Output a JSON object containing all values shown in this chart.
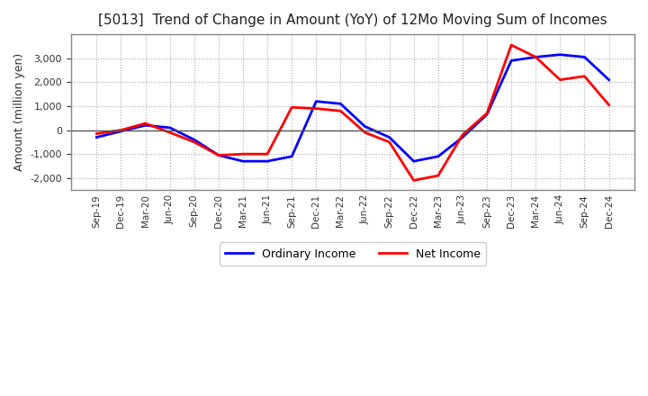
{
  "title": "[5013]  Trend of Change in Amount (YoY) of 12Mo Moving Sum of Incomes",
  "ylabel": "Amount (million yen)",
  "x_labels": [
    "Sep-19",
    "Dec-19",
    "Mar-20",
    "Jun-20",
    "Sep-20",
    "Dec-20",
    "Mar-21",
    "Jun-21",
    "Sep-21",
    "Dec-21",
    "Mar-22",
    "Jun-22",
    "Sep-22",
    "Dec-22",
    "Mar-23",
    "Jun-23",
    "Sep-23",
    "Dec-23",
    "Mar-24",
    "Jun-24",
    "Sep-24",
    "Dec-24"
  ],
  "ordinary_income": [
    -300,
    -50,
    200,
    100,
    -400,
    -1050,
    -1300,
    -1300,
    -1100,
    1200,
    1100,
    150,
    -300,
    -1300,
    -1100,
    -300,
    650,
    2900,
    3050,
    3150,
    3050,
    2100
  ],
  "net_income": [
    -150,
    0,
    280,
    -100,
    -500,
    -1050,
    -1000,
    -1000,
    950,
    900,
    800,
    -100,
    -500,
    -2100,
    -1900,
    -200,
    700,
    3550,
    3050,
    2100,
    2250,
    1050
  ],
  "ordinary_color": "#0000FF",
  "net_color": "#FF0000",
  "ylim": [
    -2500,
    4000
  ],
  "yticks": [
    -2000,
    -1000,
    0,
    1000,
    2000,
    3000
  ],
  "background_color": "#FFFFFF",
  "plot_bg_color": "#FFFFFF",
  "grid_color": "#AAAAAA",
  "legend_labels": [
    "Ordinary Income",
    "Net Income"
  ]
}
